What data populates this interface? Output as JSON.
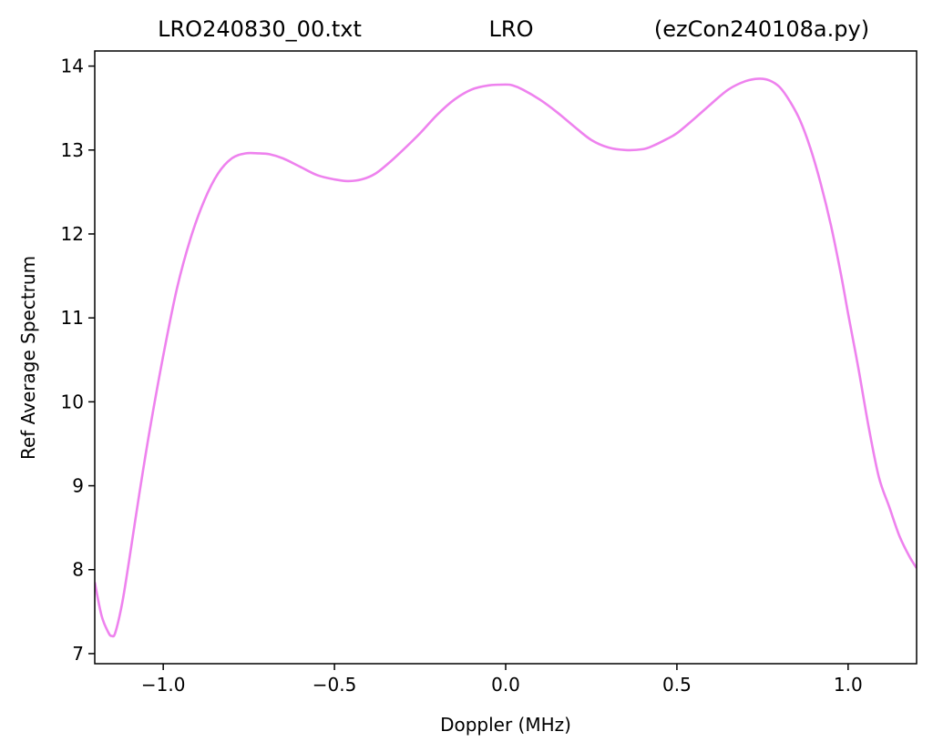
{
  "chart_data": {
    "type": "line",
    "title_parts": [
      "LRO240830_00.txt",
      "LRO",
      "(ezCon240108a.py)"
    ],
    "xlabel": "Doppler (MHz)",
    "ylabel": "Ref Average Spectrum",
    "xlim": [
      -1.2,
      1.2
    ],
    "ylim": [
      6.88,
      14.18
    ],
    "xticks": [
      -1.0,
      -0.5,
      0.0,
      0.5,
      1.0
    ],
    "xtick_labels": [
      "−1.0",
      "−0.5",
      "0.0",
      "0.5",
      "1.0"
    ],
    "yticks": [
      7,
      8,
      9,
      10,
      11,
      12,
      13,
      14
    ],
    "ytick_labels": [
      "7",
      "8",
      "9",
      "10",
      "11",
      "12",
      "13",
      "14"
    ],
    "grid": false,
    "series": [
      {
        "color": "#ee82ee",
        "x": [
          -1.2,
          -1.18,
          -1.16,
          -1.15,
          -1.14,
          -1.12,
          -1.1,
          -1.07,
          -1.04,
          -1.0,
          -0.96,
          -0.92,
          -0.88,
          -0.84,
          -0.8,
          -0.76,
          -0.72,
          -0.69,
          -0.65,
          -0.6,
          -0.55,
          -0.5,
          -0.46,
          -0.42,
          -0.38,
          -0.34,
          -0.3,
          -0.25,
          -0.2,
          -0.15,
          -0.1,
          -0.05,
          0.0,
          0.02,
          0.05,
          0.1,
          0.15,
          0.2,
          0.25,
          0.3,
          0.35,
          0.4,
          0.43,
          0.47,
          0.5,
          0.55,
          0.6,
          0.65,
          0.7,
          0.74,
          0.77,
          0.8,
          0.83,
          0.86,
          0.89,
          0.92,
          0.95,
          0.98,
          1.0,
          1.03,
          1.06,
          1.09,
          1.12,
          1.15,
          1.18,
          1.2
        ],
        "y": [
          7.85,
          7.45,
          7.25,
          7.21,
          7.25,
          7.6,
          8.1,
          8.9,
          9.65,
          10.55,
          11.35,
          11.95,
          12.4,
          12.72,
          12.9,
          12.96,
          12.96,
          12.95,
          12.9,
          12.8,
          12.7,
          12.65,
          12.63,
          12.65,
          12.72,
          12.85,
          13.0,
          13.2,
          13.42,
          13.6,
          13.72,
          13.77,
          13.78,
          13.77,
          13.72,
          13.6,
          13.45,
          13.28,
          13.12,
          13.03,
          13.0,
          13.01,
          13.05,
          13.13,
          13.2,
          13.37,
          13.55,
          13.72,
          13.82,
          13.85,
          13.83,
          13.75,
          13.58,
          13.35,
          13.02,
          12.6,
          12.1,
          11.5,
          11.05,
          10.4,
          9.7,
          9.1,
          8.75,
          8.4,
          8.15,
          8.02
        ]
      }
    ]
  }
}
